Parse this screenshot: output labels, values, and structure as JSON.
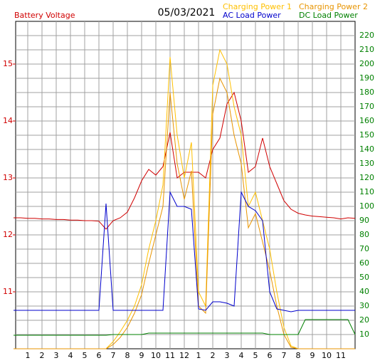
{
  "chart_data": {
    "type": "line",
    "title": "05/03/2021",
    "y_label": "Battery Voltage",
    "x": [
      0,
      0.5,
      1,
      1.5,
      2,
      2.5,
      3,
      3.5,
      4,
      4.5,
      5,
      5.5,
      6,
      6.5,
      7,
      7.5,
      8,
      8.5,
      9,
      9.5,
      10,
      10.5,
      11,
      11.5,
      12,
      12.5,
      13,
      13.5,
      14,
      14.5,
      15,
      15.5,
      16,
      16.5,
      17,
      17.5,
      18,
      18.5,
      19,
      19.5,
      20,
      20.5,
      21,
      21.5,
      22,
      22.5,
      23,
      23.5,
      24
    ],
    "xlim": [
      0,
      24
    ],
    "xticks": [
      1,
      2,
      3,
      4,
      5,
      6,
      7,
      8,
      9,
      10,
      11,
      {
        "value": 12,
        "label": "12"
      },
      {
        "value": 13,
        "label": "1"
      },
      {
        "value": 14,
        "label": "2"
      },
      {
        "value": 15,
        "label": "3"
      },
      {
        "value": 16,
        "label": "4"
      },
      {
        "value": 17,
        "label": "5"
      },
      {
        "value": 18,
        "label": "6"
      },
      {
        "value": 19,
        "label": "7"
      },
      {
        "value": 20,
        "label": "8"
      },
      {
        "value": 21,
        "label": "9"
      },
      {
        "value": 22,
        "label": "10"
      },
      {
        "value": 23,
        "label": "11"
      }
    ],
    "ylim": [
      10,
      15.75
    ],
    "yticks": [
      11,
      12,
      13,
      14,
      15
    ],
    "y2lim": [
      0,
      230
    ],
    "y2ticks": [
      10,
      20,
      30,
      40,
      50,
      60,
      70,
      80,
      90,
      100,
      110,
      120,
      130,
      140,
      150,
      160,
      170,
      180,
      190,
      200,
      210,
      220
    ],
    "grid": true,
    "legend": "top-right",
    "series": [
      {
        "name": "Battery Voltage",
        "color": "#d00000",
        "axis": "y",
        "values": [
          12.3,
          12.3,
          12.29,
          12.29,
          12.28,
          12.28,
          12.27,
          12.27,
          12.26,
          12.26,
          12.25,
          12.25,
          12.24,
          12.1,
          12.25,
          12.3,
          12.4,
          12.65,
          12.95,
          13.15,
          13.05,
          13.2,
          13.8,
          13.0,
          13.1,
          13.1,
          13.1,
          13.0,
          13.5,
          13.7,
          14.3,
          14.5,
          14.0,
          13.1,
          13.2,
          13.7,
          13.2,
          12.9,
          12.6,
          12.45,
          12.38,
          12.35,
          12.33,
          12.32,
          12.31,
          12.3,
          12.28,
          12.3,
          12.29
        ]
      },
      {
        "name": "Charging Power 1",
        "color": "#ffc000",
        "axis": "y2",
        "values": [
          0,
          0,
          0,
          0,
          0,
          0,
          0,
          0,
          0,
          0,
          0,
          0,
          0,
          0,
          5,
          12,
          20,
          30,
          45,
          70,
          90,
          115,
          205,
          150,
          120,
          145,
          40,
          30,
          185,
          210,
          200,
          170,
          150,
          100,
          110,
          90,
          70,
          40,
          15,
          2,
          0,
          0,
          0,
          0,
          0,
          0,
          0,
          0,
          0
        ]
      },
      {
        "name": "Charging Power 2",
        "color": "#e89400",
        "axis": "y2",
        "values": [
          0,
          0,
          0,
          0,
          0,
          0,
          0,
          0,
          0,
          0,
          0,
          0,
          0,
          0,
          3,
          8,
          15,
          25,
          38,
          60,
          80,
          100,
          180,
          130,
          105,
          125,
          30,
          25,
          165,
          190,
          180,
          150,
          130,
          85,
          95,
          75,
          55,
          30,
          10,
          1,
          0,
          0,
          0,
          0,
          0,
          0,
          0,
          0,
          0
        ]
      },
      {
        "name": "AC Load Power",
        "color": "#0000cc",
        "axis": "y2",
        "values": [
          27,
          27,
          27,
          27,
          27,
          27,
          27,
          27,
          27,
          27,
          27,
          27,
          27,
          102,
          27,
          27,
          27,
          27,
          27,
          27,
          27,
          27,
          110,
          100,
          100,
          98,
          28,
          27,
          33,
          33,
          32,
          30,
          110,
          100,
          97,
          90,
          40,
          28,
          27,
          26,
          27,
          27,
          27,
          27,
          27,
          27,
          27,
          27,
          27
        ]
      },
      {
        "name": "DC Load Power",
        "color": "#008000",
        "axis": "y2",
        "values": [
          9.5,
          9.5,
          9.5,
          9.5,
          9.5,
          9.5,
          9.5,
          9.5,
          9.5,
          9.5,
          9.5,
          9.5,
          9.5,
          9.5,
          10,
          10,
          10,
          10,
          10,
          11,
          11,
          11,
          11,
          11,
          11,
          11,
          11,
          11,
          11,
          11,
          11,
          11,
          11,
          11,
          11,
          11,
          10,
          10,
          10,
          10,
          10,
          20.5,
          20.5,
          20.5,
          20.5,
          20.5,
          20.5,
          20.5,
          10
        ]
      }
    ]
  }
}
